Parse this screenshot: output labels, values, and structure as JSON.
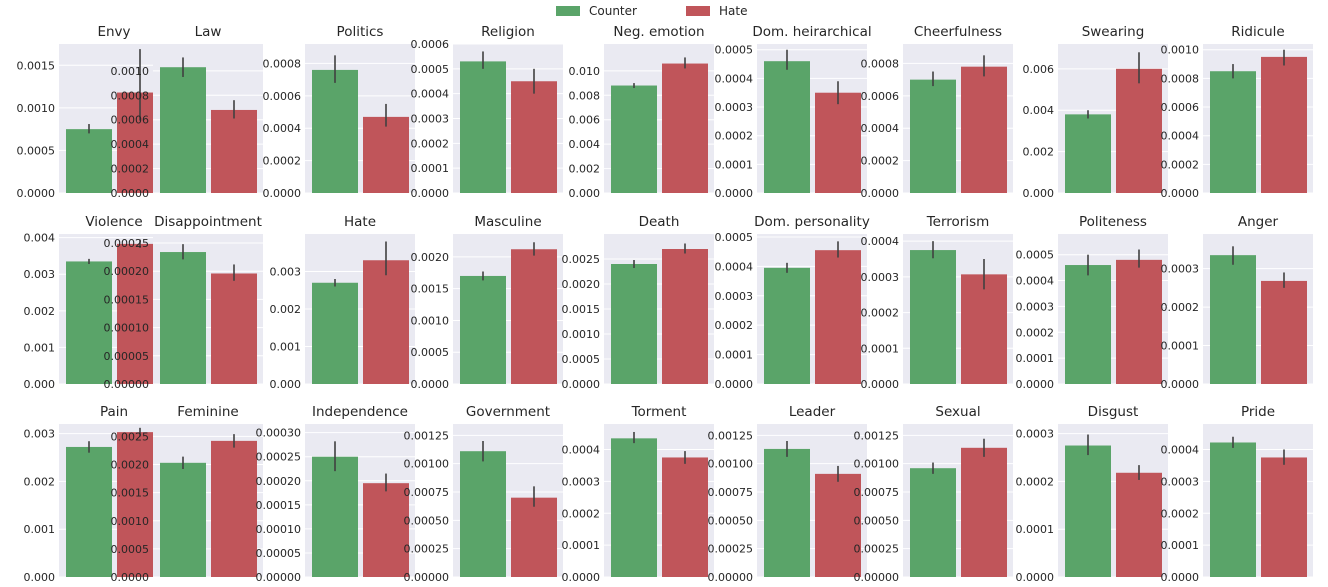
{
  "colors": {
    "counter": "#5aa469",
    "hate": "#c0555a",
    "panel_bg": "#eaeaf2",
    "grid": "#ffffff",
    "error": "#404040"
  },
  "legend": {
    "position": "top-center",
    "items": [
      {
        "label": "Counter",
        "color": "#5aa469"
      },
      {
        "label": "Hate",
        "color": "#c0555a"
      }
    ]
  },
  "chart_data": [
    {
      "type": "bar",
      "title": "Envy",
      "categories": [
        "Counter",
        "Hate"
      ],
      "values": [
        0.00075,
        0.00118
      ],
      "errors": [
        [
          0.0007,
          0.00081
        ],
        [
          0.00085,
          0.00169
        ]
      ],
      "ylim": [
        0,
        0.00175
      ],
      "ticks": [
        "0.0000",
        "0.0005",
        "0.0010",
        "0.0015"
      ],
      "tick_values": [
        0,
        0.0005,
        0.001,
        0.0015
      ]
    },
    {
      "type": "bar",
      "title": "Law",
      "categories": [
        "Counter",
        "Hate"
      ],
      "values": [
        0.00103,
        0.00068
      ],
      "errors": [
        [
          0.00095,
          0.00111
        ],
        [
          0.00061,
          0.00076
        ]
      ],
      "ylim": [
        0,
        0.00122
      ],
      "ticks": [
        "0.0000",
        "0.0002",
        "0.0004",
        "0.0006",
        "0.0008",
        "0.0010"
      ],
      "tick_values": [
        0,
        0.0002,
        0.0004,
        0.0006,
        0.0008,
        0.001
      ]
    },
    {
      "type": "bar",
      "title": "Politics",
      "categories": [
        "Counter",
        "Hate"
      ],
      "values": [
        0.00076,
        0.00047
      ],
      "errors": [
        [
          0.00068,
          0.00085
        ],
        [
          0.00041,
          0.00055
        ]
      ],
      "ylim": [
        0,
        0.00092
      ],
      "ticks": [
        "0.0000",
        "0.0002",
        "0.0004",
        "0.0006",
        "0.0008"
      ],
      "tick_values": [
        0,
        0.0002,
        0.0004,
        0.0006,
        0.0008
      ]
    },
    {
      "type": "bar",
      "title": "Religion",
      "categories": [
        "Counter",
        "Hate"
      ],
      "values": [
        0.00053,
        0.00045
      ],
      "errors": [
        [
          0.0005,
          0.00057
        ],
        [
          0.0004,
          0.0005
        ]
      ],
      "ylim": [
        0,
        0.0006
      ],
      "ticks": [
        "0.0000",
        "0.0001",
        "0.0002",
        "0.0003",
        "0.0004",
        "0.0005",
        "0.0006"
      ],
      "tick_values": [
        0,
        0.0001,
        0.0002,
        0.0003,
        0.0004,
        0.0005,
        0.0006
      ]
    },
    {
      "type": "bar",
      "title": "Neg. emotion",
      "categories": [
        "Counter",
        "Hate"
      ],
      "values": [
        0.0088,
        0.0106
      ],
      "errors": [
        [
          0.0086,
          0.009
        ],
        [
          0.0102,
          0.0111
        ]
      ],
      "ylim": [
        0,
        0.0122
      ],
      "ticks": [
        "0.000",
        "0.002",
        "0.004",
        "0.006",
        "0.008",
        "0.010"
      ],
      "tick_values": [
        0,
        0.002,
        0.004,
        0.006,
        0.008,
        0.01
      ]
    },
    {
      "type": "bar",
      "title": "Dom. heirarchical",
      "categories": [
        "Counter",
        "Hate"
      ],
      "values": [
        0.00046,
        0.00035
      ],
      "errors": [
        [
          0.00043,
          0.0005
        ],
        [
          0.00031,
          0.00039
        ]
      ],
      "ylim": [
        0,
        0.00052
      ],
      "ticks": [
        "0.0000",
        "0.0001",
        "0.0002",
        "0.0003",
        "0.0004",
        "0.0005"
      ],
      "tick_values": [
        0,
        0.0001,
        0.0002,
        0.0003,
        0.0004,
        0.0005
      ]
    },
    {
      "type": "bar",
      "title": "Cheerfulness",
      "categories": [
        "Counter",
        "Hate"
      ],
      "values": [
        0.0007,
        0.00078
      ],
      "errors": [
        [
          0.00066,
          0.00075
        ],
        [
          0.00072,
          0.00085
        ]
      ],
      "ylim": [
        0,
        0.00092
      ],
      "ticks": [
        "0.0000",
        "0.0002",
        "0.0004",
        "0.0006",
        "0.0008"
      ],
      "tick_values": [
        0,
        0.0002,
        0.0004,
        0.0006,
        0.0008
      ]
    },
    {
      "type": "bar",
      "title": "Swearing",
      "categories": [
        "Counter",
        "Hate"
      ],
      "values": [
        0.0038,
        0.006
      ],
      "errors": [
        [
          0.0036,
          0.004
        ],
        [
          0.0053,
          0.0068
        ]
      ],
      "ylim": [
        0,
        0.0072
      ],
      "ticks": [
        "0.000",
        "0.002",
        "0.004",
        "0.006"
      ],
      "tick_values": [
        0,
        0.002,
        0.004,
        0.006
      ]
    },
    {
      "type": "bar",
      "title": "Ridicule",
      "categories": [
        "Counter",
        "Hate"
      ],
      "values": [
        0.00085,
        0.00095
      ],
      "errors": [
        [
          0.0008,
          0.0009
        ],
        [
          0.00089,
          0.001
        ]
      ],
      "ylim": [
        0,
        0.00104
      ],
      "ticks": [
        "0.0000",
        "0.0002",
        "0.0004",
        "0.0006",
        "0.0008",
        "0.0010"
      ],
      "tick_values": [
        0,
        0.0002,
        0.0004,
        0.0006,
        0.0008,
        0.001
      ]
    },
    {
      "type": "bar",
      "title": "Violence",
      "categories": [
        "Counter",
        "Hate"
      ],
      "values": [
        0.00335,
        0.00383
      ],
      "errors": [
        [
          0.00328,
          0.00342
        ],
        [
          0.00372,
          0.00395
        ]
      ],
      "ylim": [
        0,
        0.0041
      ],
      "ticks": [
        "0.000",
        "0.001",
        "0.002",
        "0.003",
        "0.004"
      ],
      "tick_values": [
        0,
        0.001,
        0.002,
        0.003,
        0.004
      ]
    },
    {
      "type": "bar",
      "title": "Disappointment",
      "categories": [
        "Counter",
        "Hate"
      ],
      "values": [
        0.000234,
        0.000196
      ],
      "errors": [
        [
          0.000221,
          0.000248
        ],
        [
          0.000183,
          0.000212
        ]
      ],
      "ylim": [
        0,
        0.000266
      ],
      "ticks": [
        "0.00000",
        "0.00005",
        "0.00010",
        "0.00015",
        "0.00020",
        "0.00025"
      ],
      "tick_values": [
        0,
        5e-05,
        0.0001,
        0.00015,
        0.0002,
        0.00025
      ]
    },
    {
      "type": "bar",
      "title": "Hate",
      "categories": [
        "Counter",
        "Hate"
      ],
      "values": [
        0.0027,
        0.0033
      ],
      "errors": [
        [
          0.0026,
          0.0028
        ],
        [
          0.0029,
          0.0038
        ]
      ],
      "ylim": [
        0,
        0.004
      ],
      "ticks": [
        "0.000",
        "0.001",
        "0.002",
        "0.003"
      ],
      "tick_values": [
        0,
        0.001,
        0.002,
        0.003
      ]
    },
    {
      "type": "bar",
      "title": "Masculine",
      "categories": [
        "Counter",
        "Hate"
      ],
      "values": [
        0.0017,
        0.00212
      ],
      "errors": [
        [
          0.00163,
          0.00177
        ],
        [
          0.00202,
          0.00223
        ]
      ],
      "ylim": [
        0,
        0.00236
      ],
      "ticks": [
        "0.0000",
        "0.0005",
        "0.0010",
        "0.0015",
        "0.0020"
      ],
      "tick_values": [
        0,
        0.0005,
        0.001,
        0.0015,
        0.002
      ]
    },
    {
      "type": "bar",
      "title": "Death",
      "categories": [
        "Counter",
        "Hate"
      ],
      "values": [
        0.0024,
        0.0027
      ],
      "errors": [
        [
          0.00232,
          0.00248
        ],
        [
          0.00261,
          0.00281
        ]
      ],
      "ylim": [
        0,
        0.003
      ],
      "ticks": [
        "0.0000",
        "0.0005",
        "0.0010",
        "0.0015",
        "0.0020",
        "0.0025"
      ],
      "tick_values": [
        0,
        0.0005,
        0.001,
        0.0015,
        0.002,
        0.0025
      ]
    },
    {
      "type": "bar",
      "title": "Dom. personality",
      "categories": [
        "Counter",
        "Hate"
      ],
      "values": [
        0.000395,
        0.000455
      ],
      "errors": [
        [
          0.000378,
          0.000412
        ],
        [
          0.00043,
          0.000485
        ]
      ],
      "ylim": [
        0,
        0.00051
      ],
      "ticks": [
        "0.0000",
        "0.0001",
        "0.0002",
        "0.0003",
        "0.0004",
        "0.0005"
      ],
      "tick_values": [
        0,
        0.0001,
        0.0002,
        0.0003,
        0.0004,
        0.0005
      ]
    },
    {
      "type": "bar",
      "title": "Terrorism",
      "categories": [
        "Counter",
        "Hate"
      ],
      "values": [
        0.000375,
        0.000307
      ],
      "errors": [
        [
          0.000352,
          0.0004
        ],
        [
          0.000265,
          0.00035
        ]
      ],
      "ylim": [
        0,
        0.00042
      ],
      "ticks": [
        "0.0000",
        "0.0001",
        "0.0002",
        "0.0003",
        "0.0004"
      ],
      "tick_values": [
        0,
        0.0001,
        0.0002,
        0.0003,
        0.0004
      ]
    },
    {
      "type": "bar",
      "title": "Politeness",
      "categories": [
        "Counter",
        "Hate"
      ],
      "values": [
        0.00046,
        0.00048
      ],
      "errors": [
        [
          0.00042,
          0.0005
        ],
        [
          0.00045,
          0.00052
        ]
      ],
      "ylim": [
        0,
        0.00058
      ],
      "ticks": [
        "0.0000",
        "0.0001",
        "0.0002",
        "0.0003",
        "0.0004",
        "0.0005"
      ],
      "tick_values": [
        0,
        0.0001,
        0.0002,
        0.0003,
        0.0004,
        0.0005
      ]
    },
    {
      "type": "bar",
      "title": "Anger",
      "categories": [
        "Counter",
        "Hate"
      ],
      "values": [
        0.000335,
        0.000268
      ],
      "errors": [
        [
          0.00031,
          0.000358
        ],
        [
          0.00025,
          0.00029
        ]
      ],
      "ylim": [
        0,
        0.00039
      ],
      "ticks": [
        "0.0000",
        "0.0001",
        "0.0002",
        "0.0003"
      ],
      "tick_values": [
        0,
        0.0001,
        0.0002,
        0.0003
      ]
    },
    {
      "type": "bar",
      "title": "Pain",
      "categories": [
        "Counter",
        "Hate"
      ],
      "values": [
        0.00272,
        0.00303
      ],
      "errors": [
        [
          0.0026,
          0.00284
        ],
        [
          0.00294,
          0.00312
        ]
      ],
      "ylim": [
        0,
        0.0032
      ],
      "ticks": [
        "0.000",
        "0.001",
        "0.002",
        "0.003"
      ],
      "tick_values": [
        0,
        0.001,
        0.002,
        0.003
      ]
    },
    {
      "type": "bar",
      "title": "Feminine",
      "categories": [
        "Counter",
        "Hate"
      ],
      "values": [
        0.00203,
        0.00242
      ],
      "errors": [
        [
          0.00192,
          0.00214
        ],
        [
          0.0023,
          0.00254
        ]
      ],
      "ylim": [
        0,
        0.00272
      ],
      "ticks": [
        "0.0000",
        "0.0005",
        "0.0010",
        "0.0015",
        "0.0020",
        "0.0025"
      ],
      "tick_values": [
        0,
        0.0005,
        0.001,
        0.0015,
        0.002,
        0.0025
      ]
    },
    {
      "type": "bar",
      "title": "Independence",
      "categories": [
        "Counter",
        "Hate"
      ],
      "values": [
        0.00025,
        0.000195
      ],
      "errors": [
        [
          0.00022,
          0.000282
        ],
        [
          0.000178,
          0.000215
        ]
      ],
      "ylim": [
        0,
        0.000318
      ],
      "ticks": [
        "0.00000",
        "0.00005",
        "0.00010",
        "0.00015",
        "0.00020",
        "0.00025",
        "0.00030"
      ],
      "tick_values": [
        0,
        5e-05,
        0.0001,
        0.00015,
        0.0002,
        0.00025,
        0.0003
      ]
    },
    {
      "type": "bar",
      "title": "Government",
      "categories": [
        "Counter",
        "Hate"
      ],
      "values": [
        0.00111,
        0.0007
      ],
      "errors": [
        [
          0.00102,
          0.0012
        ],
        [
          0.00062,
          0.0008
        ]
      ],
      "ylim": [
        0,
        0.00135
      ],
      "ticks": [
        "0.00000",
        "0.00025",
        "0.00050",
        "0.00075",
        "0.00100",
        "0.00125"
      ],
      "tick_values": [
        0,
        0.00025,
        0.0005,
        0.00075,
        0.001,
        0.00125
      ]
    },
    {
      "type": "bar",
      "title": "Torment",
      "categories": [
        "Counter",
        "Hate"
      ],
      "values": [
        0.000435,
        0.000375
      ],
      "errors": [
        [
          0.00042,
          0.000455
        ],
        [
          0.000355,
          0.000395
        ]
      ],
      "ylim": [
        0,
        0.00048
      ],
      "ticks": [
        "0.0000",
        "0.0001",
        "0.0002",
        "0.0003",
        "0.0004"
      ],
      "tick_values": [
        0,
        0.0001,
        0.0002,
        0.0003,
        0.0004
      ]
    },
    {
      "type": "bar",
      "title": "Leader",
      "categories": [
        "Counter",
        "Hate"
      ],
      "values": [
        0.00113,
        0.00091
      ],
      "errors": [
        [
          0.00106,
          0.0012
        ],
        [
          0.00084,
          0.00098
        ]
      ],
      "ylim": [
        0,
        0.00135
      ],
      "ticks": [
        "0.00000",
        "0.00025",
        "0.00050",
        "0.00075",
        "0.00100",
        "0.00125"
      ],
      "tick_values": [
        0,
        0.00025,
        0.0005,
        0.00075,
        0.001,
        0.00125
      ]
    },
    {
      "type": "bar",
      "title": "Sexual",
      "categories": [
        "Counter",
        "Hate"
      ],
      "values": [
        0.00096,
        0.00114
      ],
      "errors": [
        [
          0.00091,
          0.00101
        ],
        [
          0.00106,
          0.00122
        ]
      ],
      "ylim": [
        0,
        0.00135
      ],
      "ticks": [
        "0.00000",
        "0.00025",
        "0.00050",
        "0.00075",
        "0.00100",
        "0.00125"
      ],
      "tick_values": [
        0,
        0.00025,
        0.0005,
        0.00075,
        0.001,
        0.00125
      ]
    },
    {
      "type": "bar",
      "title": "Disgust",
      "categories": [
        "Counter",
        "Hate"
      ],
      "values": [
        0.000275,
        0.000218
      ],
      "errors": [
        [
          0.000255,
          0.000298
        ],
        [
          0.000203,
          0.000234
        ]
      ],
      "ylim": [
        0,
        0.00032
      ],
      "ticks": [
        "0.0000",
        "0.0001",
        "0.0002",
        "0.0003"
      ],
      "tick_values": [
        0,
        0.0001,
        0.0002,
        0.0003
      ]
    },
    {
      "type": "bar",
      "title": "Pride",
      "categories": [
        "Counter",
        "Hate"
      ],
      "values": [
        0.000422,
        0.000375
      ],
      "errors": [
        [
          0.000405,
          0.00044
        ],
        [
          0.000352,
          0.0004
        ]
      ],
      "ylim": [
        0,
        0.00048
      ],
      "ticks": [
        "0.0000",
        "0.0001",
        "0.0002",
        "0.0003",
        "0.0004"
      ],
      "tick_values": [
        0,
        0.0001,
        0.0002,
        0.0003,
        0.0004
      ]
    }
  ]
}
